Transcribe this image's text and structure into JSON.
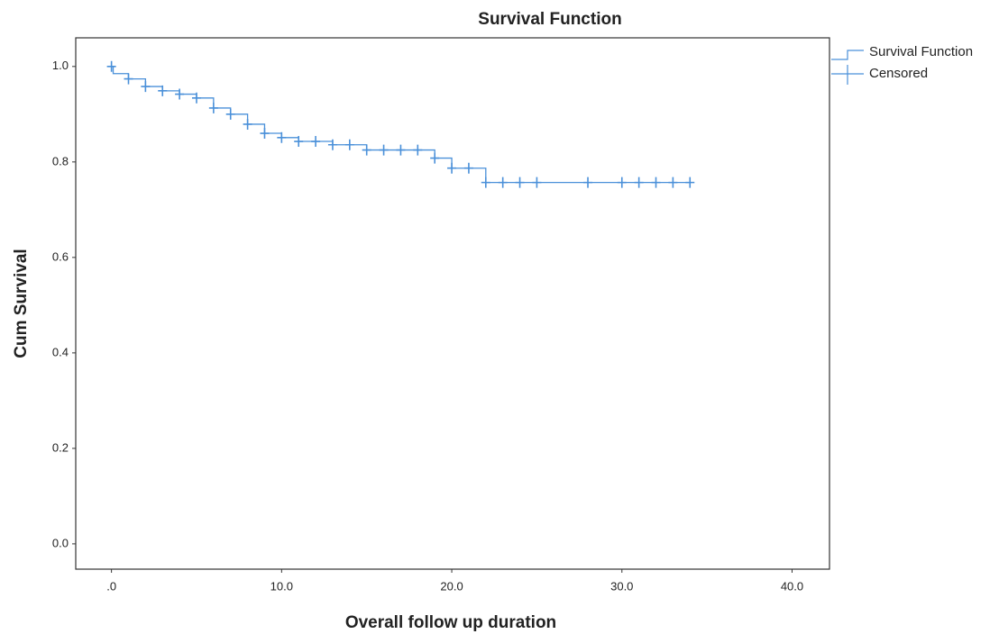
{
  "chart_data": {
    "type": "step",
    "title": "Survival Function",
    "x_label": "Overall follow up duration",
    "y_label": "Cum Survival",
    "xlim": [
      -2.1,
      42.2
    ],
    "ylim": [
      -0.053,
      1.06
    ],
    "xticks": [
      {
        "value": 0,
        "label": ".0"
      },
      {
        "value": 10,
        "label": "10.0"
      },
      {
        "value": 20,
        "label": "20.0"
      },
      {
        "value": 30,
        "label": "30.0"
      },
      {
        "value": 40,
        "label": "40.0"
      }
    ],
    "yticks": [
      {
        "value": 0,
        "label": "0.0"
      },
      {
        "value": 0.2,
        "label": "0.2"
      },
      {
        "value": 0.4,
        "label": "0.4"
      },
      {
        "value": 0.6,
        "label": "0.6"
      },
      {
        "value": 0.8,
        "label": "0.8"
      },
      {
        "value": 1,
        "label": "1.0"
      }
    ],
    "series": [
      {
        "name": "Survival Function",
        "color": "#4a90d9",
        "x": [
          0,
          0.1,
          1,
          2,
          3,
          4,
          5,
          6,
          7,
          8,
          9,
          10,
          11,
          13,
          15,
          19,
          20,
          22,
          34
        ],
        "values": [
          1.0,
          0.985,
          0.974,
          0.958,
          0.949,
          0.942,
          0.934,
          0.913,
          0.9,
          0.879,
          0.86,
          0.851,
          0.843,
          0.836,
          0.825,
          0.808,
          0.787,
          0.757,
          0.757
        ]
      },
      {
        "name": "Censored",
        "color": "#4a90d9",
        "x": [
          0,
          1,
          2,
          3,
          4,
          5,
          6,
          7,
          8,
          9,
          10,
          11,
          12,
          13,
          14,
          15,
          16,
          17,
          18,
          19,
          20,
          21,
          22,
          23,
          24,
          25,
          28,
          30,
          31,
          32,
          33,
          34
        ],
        "values": [
          1.0,
          0.974,
          0.958,
          0.949,
          0.942,
          0.934,
          0.913,
          0.9,
          0.879,
          0.86,
          0.851,
          0.843,
          0.843,
          0.836,
          0.836,
          0.825,
          0.825,
          0.825,
          0.825,
          0.808,
          0.787,
          0.787,
          0.757,
          0.757,
          0.757,
          0.757,
          0.757,
          0.757,
          0.757,
          0.757,
          0.757,
          0.757
        ]
      }
    ]
  }
}
